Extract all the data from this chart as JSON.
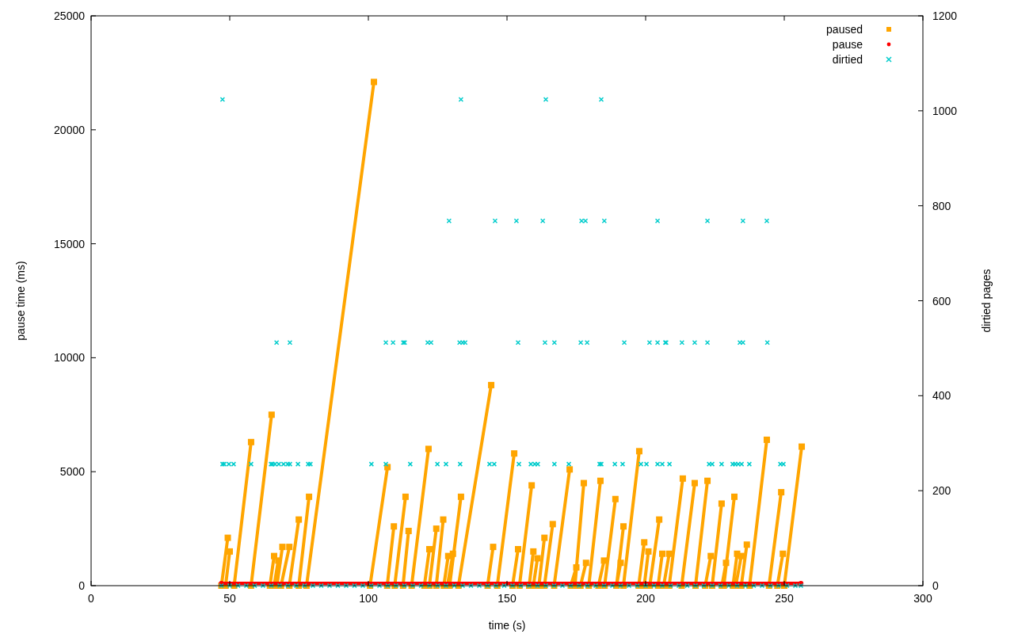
{
  "chart_data": {
    "type": "line",
    "xlabel": "time (s)",
    "ylabel": "pause time (ms)",
    "y2label": "dirtied pages",
    "xlim": [
      0,
      300
    ],
    "xticks": [
      0,
      50,
      100,
      150,
      200,
      250,
      300
    ],
    "ylim": [
      0,
      25000
    ],
    "yticks": [
      0,
      5000,
      10000,
      15000,
      20000,
      25000
    ],
    "y2lim": [
      0,
      1200
    ],
    "y2ticks": [
      0,
      200,
      400,
      600,
      800,
      1000,
      1200
    ],
    "legend": "top right",
    "grid": false,
    "series": [
      {
        "name": "paused",
        "marker": "square",
        "color": "#ffa500",
        "x": [
          47.0,
          49.3,
          null,
          48.5,
          50.0,
          null,
          51.6,
          57.7,
          null,
          57.7,
          65.1,
          null,
          64.5,
          66.0,
          null,
          66.0,
          67.5,
          null,
          67.0,
          69.0,
          null,
          68.5,
          71.5,
          null,
          71.5,
          74.9,
          null,
          74.9,
          78.6,
          null,
          77.7,
          102.0,
          null,
          100.6,
          106.9,
          null,
          106.8,
          109.2,
          null,
          109.5,
          113.4,
          null,
          112.5,
          114.5,
          null,
          115.6,
          121.7,
          null,
          120.2,
          122.0,
          null,
          122.0,
          124.5,
          null,
          124.5,
          127.0,
          null,
          127.2,
          128.8,
          null,
          128.5,
          130.5,
          null,
          129.3,
          133.4,
          null,
          132.5,
          144.3,
          null,
          143.0,
          145.0,
          null,
          146.5,
          152.6,
          null,
          152.0,
          154.0,
          null,
          154.5,
          158.9,
          null,
          158.0,
          159.5,
          null,
          159.5,
          161.0,
          null,
          161.5,
          163.5,
          null,
          163.5,
          166.5,
          null,
          167.0,
          172.6,
          null,
          173.0,
          175.0,
          null,
          174.5,
          177.7,
          null,
          176.5,
          178.5,
          null,
          179.5,
          183.7,
          null,
          183.0,
          185.0,
          null,
          185.2,
          189.1,
          null,
          189.5,
          191.0,
          null,
          189.5,
          192.0,
          null,
          192.0,
          197.7,
          null,
          197.5,
          199.5,
          null,
          199.5,
          201.0,
          null,
          201.5,
          204.9,
          null,
          204.5,
          206.0,
          null,
          206.5,
          208.5,
          null,
          208.5,
          213.4,
          null,
          213.0,
          217.7,
          null,
          218.0,
          222.3,
          null,
          221.5,
          223.5,
          null,
          224.0,
          227.4,
          null,
          227.5,
          229.0,
          null,
          228.2,
          232.0,
          null,
          231.5,
          233.0,
          null,
          232.5,
          234.5,
          null,
          234.5,
          236.5,
          null,
          237.5,
          243.7,
          null,
          244.5,
          248.9,
          null,
          247.5,
          249.5,
          null,
          250.0,
          256.3
        ],
        "values": [
          0,
          2100,
          null,
          0,
          1500,
          null,
          0,
          6300,
          null,
          0,
          7500,
          null,
          0,
          1300,
          null,
          0,
          1100,
          null,
          0,
          1700,
          null,
          0,
          1700,
          null,
          0,
          2900,
          null,
          0,
          3900,
          null,
          0,
          22100,
          null,
          0,
          5200,
          null,
          0,
          2600,
          null,
          0,
          3900,
          null,
          0,
          2400,
          null,
          0,
          6000,
          null,
          0,
          1600,
          null,
          0,
          2500,
          null,
          0,
          2900,
          null,
          0,
          1300,
          null,
          0,
          1400,
          null,
          0,
          3900,
          null,
          0,
          8800,
          null,
          0,
          1700,
          null,
          0,
          5800,
          null,
          0,
          1600,
          null,
          0,
          4400,
          null,
          0,
          1500,
          null,
          0,
          1200,
          null,
          0,
          2100,
          null,
          0,
          2700,
          null,
          0,
          5100,
          null,
          0,
          800,
          null,
          0,
          4500,
          null,
          0,
          1000,
          null,
          0,
          4600,
          null,
          0,
          1100,
          null,
          0,
          3800,
          null,
          0,
          1000,
          null,
          0,
          2600,
          null,
          0,
          5900,
          null,
          0,
          1900,
          null,
          0,
          1500,
          null,
          0,
          2900,
          null,
          0,
          1400,
          null,
          0,
          1400,
          null,
          0,
          4700,
          null,
          0,
          4500,
          null,
          0,
          4600,
          null,
          0,
          1300,
          null,
          0,
          3600,
          null,
          0,
          1000,
          null,
          0,
          3900,
          null,
          0,
          1400,
          null,
          0,
          1300,
          null,
          0,
          1800,
          null,
          0,
          6400,
          null,
          0,
          4100,
          null,
          0,
          1400,
          null,
          0,
          6100
        ]
      },
      {
        "name": "pause",
        "marker": "circle",
        "color": "#ff0000",
        "x": [
          47,
          256
        ],
        "values": [
          100,
          100
        ]
      },
      {
        "name": "dirtied",
        "type": "scatter",
        "marker": "cross",
        "axis": "y2",
        "color": "#00cccc",
        "x": [
          47.4,
          133.4,
          164.0,
          184.0,
          129.1,
          145.7,
          153.4,
          162.9,
          176.9,
          178.3,
          185.1,
          204.3,
          222.3,
          235.1,
          243.7,
          66.9,
          71.7,
          106.3,
          108.9,
          112.6,
          113.1,
          121.4,
          122.6,
          132.9,
          134.0,
          134.9,
          154.0,
          163.7,
          167.1,
          176.6,
          178.9,
          192.3,
          201.4,
          204.3,
          207.1,
          207.4,
          213.1,
          217.7,
          222.3,
          234.0,
          235.1,
          243.9,
          47.4,
          48.0,
          49.7,
          51.4,
          57.7,
          64.9,
          65.4,
          66.3,
          67.7,
          69.4,
          70.9,
          71.7,
          74.6,
          78.3,
          79.1,
          101.1,
          106.3,
          115.1,
          124.9,
          128.0,
          133.1,
          143.7,
          145.4,
          154.3,
          158.6,
          160.0,
          161.1,
          167.1,
          172.3,
          183.4,
          184.0,
          188.9,
          191.7,
          198.3,
          200.3,
          204.3,
          206.0,
          208.6,
          222.9,
          224.0,
          227.4,
          231.4,
          232.3,
          233.4,
          234.6,
          237.4,
          248.6,
          249.7,
          47,
          50,
          53,
          56,
          59,
          62,
          65,
          68,
          71,
          74,
          77,
          80,
          83,
          86,
          89,
          92,
          95,
          98,
          101,
          104,
          107,
          110,
          113,
          116,
          119,
          122,
          125,
          128,
          131,
          134,
          137,
          140,
          143,
          146,
          149,
          152,
          155,
          158,
          161,
          164,
          167,
          170,
          173,
          176,
          179,
          182,
          185,
          188,
          191,
          194,
          197,
          200,
          203,
          206,
          209,
          212,
          215,
          218,
          221,
          224,
          227,
          230,
          233,
          236,
          239,
          242,
          245,
          248,
          251,
          254,
          256
        ],
        "values": [
          1024,
          1024,
          1024,
          1024,
          768,
          768,
          768,
          768,
          768,
          768,
          768,
          768,
          768,
          768,
          768,
          512,
          512,
          512,
          512,
          512,
          512,
          512,
          512,
          512,
          512,
          512,
          512,
          512,
          512,
          512,
          512,
          512,
          512,
          512,
          512,
          512,
          512,
          512,
          512,
          512,
          512,
          512,
          256,
          256,
          256,
          256,
          256,
          256,
          256,
          256,
          256,
          256,
          256,
          256,
          256,
          256,
          256,
          256,
          256,
          256,
          256,
          256,
          256,
          256,
          256,
          256,
          256,
          256,
          256,
          256,
          256,
          256,
          256,
          256,
          256,
          256,
          256,
          256,
          256,
          256,
          256,
          256,
          256,
          256,
          256,
          256,
          256,
          256,
          256,
          256,
          0,
          0,
          0,
          0,
          0,
          0,
          0,
          0,
          0,
          0,
          0,
          0,
          0,
          0,
          0,
          0,
          0,
          0,
          0,
          0,
          0,
          0,
          0,
          0,
          0,
          0,
          0,
          0,
          0,
          0,
          0,
          0,
          0,
          0,
          0,
          0,
          0,
          0,
          0,
          0,
          0,
          0,
          0,
          0,
          0,
          0,
          0,
          0,
          0,
          0,
          0,
          0,
          0,
          0,
          0,
          0,
          0,
          0,
          0,
          0,
          0,
          0,
          0,
          0,
          0,
          0,
          0,
          0,
          0,
          0,
          0
        ]
      }
    ]
  }
}
